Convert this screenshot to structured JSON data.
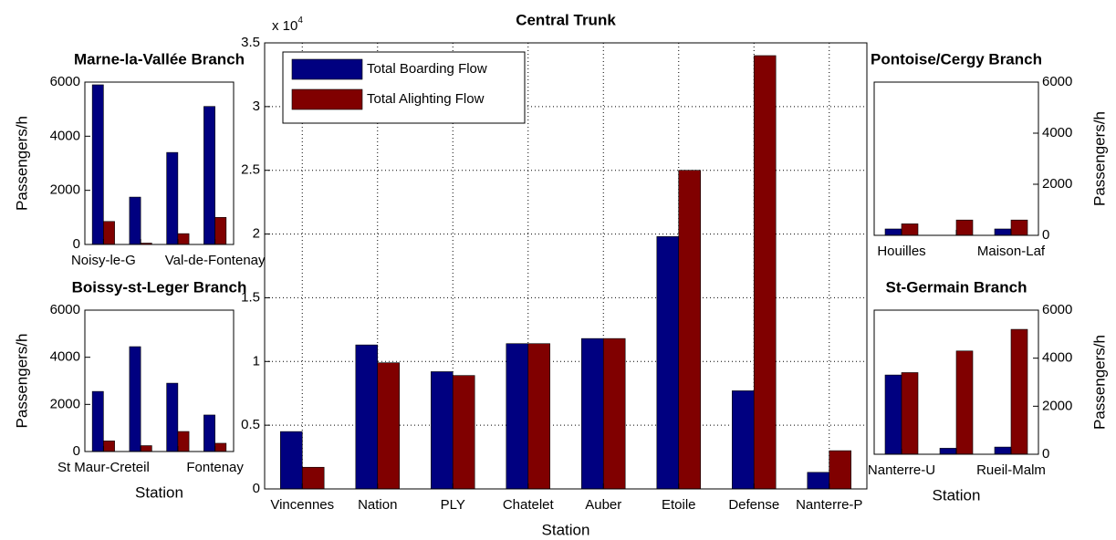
{
  "chart_data": [
    {
      "type": "bar",
      "title": "Central Trunk",
      "x_label": "Station",
      "y_multiplier": {
        "base": "x 10",
        "exponent": "4"
      },
      "categories": [
        "Vincennes",
        "Nation",
        "PLY",
        "Chatelet",
        "Auber",
        "Etoile",
        "Defense",
        "Nanterre-P"
      ],
      "series": [
        {
          "name": "Total Boarding Flow",
          "color": "#000080",
          "values": [
            0.45,
            1.13,
            0.92,
            1.14,
            1.18,
            1.98,
            0.77,
            0.13
          ]
        },
        {
          "name": "Total Alighting Flow",
          "color": "#800000",
          "values": [
            0.17,
            0.99,
            0.89,
            1.14,
            1.18,
            2.5,
            3.4,
            0.3
          ]
        }
      ],
      "ylim": [
        0,
        3.5
      ],
      "yticks": [
        0,
        0.5,
        1,
        1.5,
        2,
        2.5,
        3,
        3.5
      ],
      "grid": true,
      "legend": "northwest",
      "y_axis_side": "left"
    },
    {
      "type": "bar",
      "title": "Marne-la-Vallée Branch",
      "y_label": "Passengers/h",
      "categories": [
        "Noisy-le-G",
        null,
        null,
        "Val-de-Fontenay"
      ],
      "series": [
        {
          "color": "#000080",
          "values": [
            5900,
            1750,
            3400,
            5100
          ]
        },
        {
          "color": "#800000",
          "values": [
            850,
            50,
            400,
            1000
          ]
        }
      ],
      "ylim": [
        0,
        6000
      ],
      "yticks": [
        0,
        2000,
        4000,
        6000
      ],
      "grid": false,
      "y_axis_side": "left"
    },
    {
      "type": "bar",
      "title": "Boissy-st-Leger Branch",
      "y_label": "Passengers/h",
      "x_label": "Station",
      "categories": [
        "St Maur-Creteil",
        null,
        null,
        "Fontenay"
      ],
      "series": [
        {
          "color": "#000080",
          "values": [
            2550,
            4450,
            2900,
            1550
          ]
        },
        {
          "color": "#800000",
          "values": [
            450,
            250,
            850,
            350
          ]
        }
      ],
      "ylim": [
        0,
        6000
      ],
      "yticks": [
        0,
        2000,
        4000,
        6000
      ],
      "grid": false,
      "y_axis_side": "left"
    },
    {
      "type": "bar",
      "title": "Pontoise/Cergy Branch",
      "y_label": "Passengers/h",
      "categories": [
        "Houilles",
        null,
        "Maison-Laf"
      ],
      "series": [
        {
          "color": "#000080",
          "values": [
            250,
            0,
            250
          ]
        },
        {
          "color": "#800000",
          "values": [
            450,
            600,
            600
          ]
        }
      ],
      "ylim": [
        0,
        6000
      ],
      "yticks": [
        0,
        2000,
        4000,
        6000
      ],
      "grid": false,
      "y_axis_side": "right"
    },
    {
      "type": "bar",
      "title": "St-Germain Branch",
      "y_label": "Passengers/h",
      "x_label": "Station",
      "categories": [
        "Nanterre-U",
        null,
        "Rueil-Malm"
      ],
      "series": [
        {
          "color": "#000080",
          "values": [
            3300,
            250,
            300
          ]
        },
        {
          "color": "#800000",
          "values": [
            3400,
            4300,
            5200
          ]
        }
      ],
      "ylim": [
        0,
        6000
      ],
      "yticks": [
        0,
        2000,
        4000,
        6000
      ],
      "grid": false,
      "y_axis_side": "right"
    }
  ]
}
